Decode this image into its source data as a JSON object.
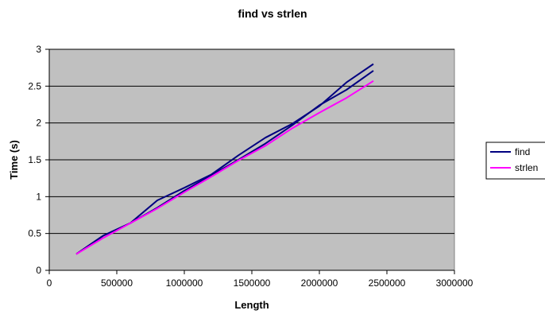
{
  "chart_data": {
    "type": "line",
    "title": "find vs strlen",
    "xlabel": "Length",
    "ylabel": "Time (s)",
    "xlim": [
      0,
      3000000
    ],
    "ylim": [
      0,
      3
    ],
    "x_ticks": [
      0,
      500000,
      1000000,
      1500000,
      2000000,
      2500000,
      3000000
    ],
    "x_tick_labels": [
      "0",
      "500000",
      "1000000",
      "1500000",
      "2000000",
      "2500000",
      "3000000"
    ],
    "y_ticks": [
      0,
      0.5,
      1,
      1.5,
      2,
      2.5,
      3
    ],
    "y_tick_labels": [
      "0",
      "0.5",
      "1",
      "1.5",
      "2",
      "2.5",
      "3"
    ],
    "grid": "horizontal",
    "plot_background": "#c0c0c0",
    "legend_position": "right",
    "series": [
      {
        "name": "find",
        "color": "#000080",
        "x": [
          200000,
          400000,
          600000,
          800000,
          1000000,
          1200000,
          1400000,
          1600000,
          1800000,
          2000000,
          2200000,
          2400000
        ],
        "y": [
          0.22,
          0.47,
          0.64,
          0.85,
          1.08,
          1.29,
          1.5,
          1.72,
          1.97,
          2.24,
          2.45,
          2.71
        ]
      },
      {
        "name": "find",
        "color": "#000080",
        "x": [
          200000,
          400000,
          600000,
          800000,
          1000000,
          1200000,
          1400000,
          1600000,
          1800000,
          2000000,
          2200000,
          2400000
        ],
        "y": [
          0.22,
          0.47,
          0.64,
          0.95,
          1.12,
          1.3,
          1.56,
          1.8,
          1.99,
          2.23,
          2.55,
          2.8
        ]
      },
      {
        "name": "strlen",
        "color": "#ff00ff",
        "x": [
          200000,
          400000,
          600000,
          800000,
          1000000,
          1200000,
          1400000,
          1600000,
          1800000,
          2000000,
          2200000,
          2400000
        ],
        "y": [
          0.22,
          0.44,
          0.64,
          0.84,
          1.06,
          1.27,
          1.49,
          1.69,
          1.93,
          2.14,
          2.34,
          2.57
        ]
      }
    ],
    "legend_entries": [
      {
        "name": "find",
        "color": "#000080"
      },
      {
        "name": "strlen",
        "color": "#ff00ff"
      }
    ]
  }
}
